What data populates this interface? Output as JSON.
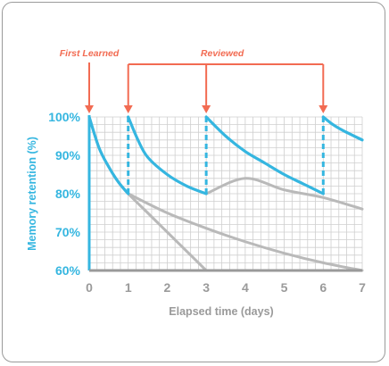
{
  "chart_data": {
    "type": "line",
    "xlabel": "Elapsed time (days)",
    "ylabel": "Memory retention (%)",
    "xlim": [
      0,
      7
    ],
    "ylim": [
      60,
      100
    ],
    "x_ticks": [
      "0",
      "1",
      "2",
      "3",
      "4",
      "5",
      "6",
      "7"
    ],
    "y_ticks": [
      "60%",
      "70%",
      "80%",
      "90%",
      "100%"
    ],
    "grid": true,
    "annotations": {
      "first_learned": {
        "label": "First Learned",
        "x": 0
      },
      "reviewed": {
        "label": "Reviewed",
        "x": [
          1,
          3,
          6
        ]
      }
    },
    "series": [
      {
        "role": "forgetting",
        "color": "#b9b9b9",
        "points": [
          [
            0,
            100
          ],
          [
            0.25,
            92
          ],
          [
            0.5,
            87
          ],
          [
            0.75,
            83
          ],
          [
            1,
            80
          ],
          [
            1.5,
            75
          ],
          [
            2,
            70
          ],
          [
            2.5,
            65
          ],
          [
            3,
            60
          ]
        ]
      },
      {
        "role": "retained",
        "color": "#35b6e0",
        "points": [
          [
            0,
            100
          ],
          [
            0.25,
            92
          ],
          [
            0.5,
            87
          ],
          [
            0.75,
            83
          ],
          [
            1,
            80
          ]
        ]
      },
      {
        "role": "forgetting",
        "color": "#b9b9b9",
        "points": [
          [
            1,
            80
          ],
          [
            2,
            75
          ],
          [
            3,
            71
          ],
          [
            4,
            67.5
          ],
          [
            5,
            64.5
          ],
          [
            6,
            62
          ],
          [
            7,
            60
          ]
        ]
      },
      {
        "role": "retained",
        "color": "#35b6e0",
        "points": [
          [
            1,
            100
          ],
          [
            1.25,
            94
          ],
          [
            1.5,
            89.5
          ],
          [
            2,
            85
          ],
          [
            2.5,
            82
          ],
          [
            3,
            80
          ]
        ]
      },
      {
        "role": "forgetting",
        "color": "#b9b9b9",
        "points": [
          [
            3,
            80
          ],
          [
            4,
            84
          ],
          [
            5,
            81
          ],
          [
            6,
            79
          ],
          [
            7,
            76
          ]
        ]
      },
      {
        "role": "retained",
        "color": "#35b6e0",
        "points": [
          [
            3,
            100
          ],
          [
            3.5,
            95
          ],
          [
            4,
            91
          ],
          [
            4.5,
            88
          ],
          [
            5,
            85
          ],
          [
            5.5,
            82.5
          ],
          [
            6,
            80
          ]
        ]
      },
      {
        "role": "retained",
        "color": "#35b6e0",
        "points": [
          [
            6,
            100
          ],
          [
            6.25,
            98
          ],
          [
            6.5,
            96.5
          ],
          [
            7,
            94
          ]
        ]
      }
    ],
    "reviews": [
      {
        "x": 1,
        "from": 80,
        "to": 100
      },
      {
        "x": 3,
        "from": 80,
        "to": 100
      },
      {
        "x": 6,
        "from": 80,
        "to": 100
      }
    ],
    "colors": {
      "axis_y": "#35b6e0",
      "axis_x": "#9a9a9a",
      "annotation": "#f26b52",
      "grid": "#cfcfcf"
    }
  }
}
